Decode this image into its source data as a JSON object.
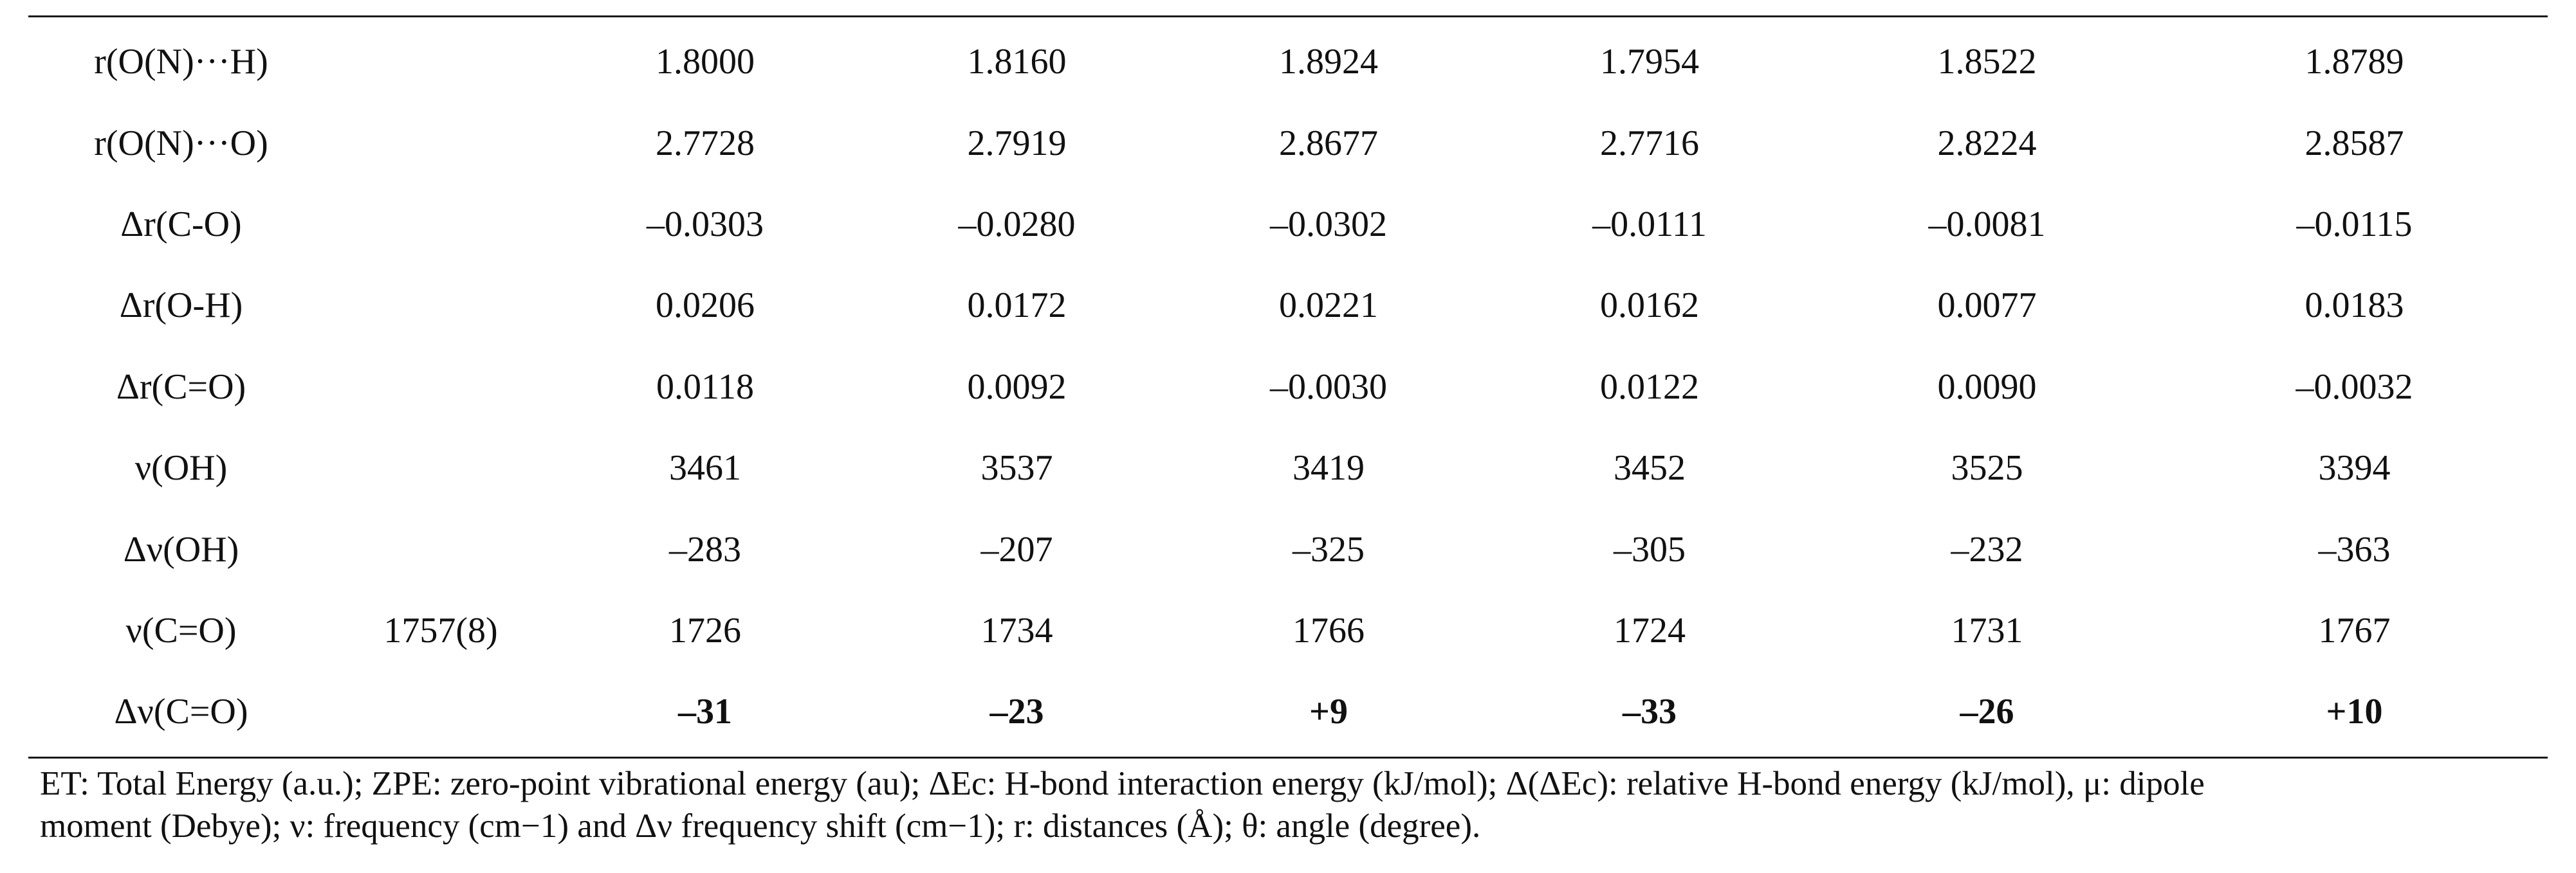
{
  "table": {
    "rows": [
      {
        "label": "r(O(N)···H)",
        "ref": "",
        "values": [
          "1.8000",
          "1.8160",
          "1.8924",
          "1.7954",
          "1.8522",
          "1.8789"
        ],
        "bold": false
      },
      {
        "label": "r(O(N)···O)",
        "ref": "",
        "values": [
          "2.7728",
          "2.7919",
          "2.8677",
          "2.7716",
          "2.8224",
          "2.8587"
        ],
        "bold": false
      },
      {
        "label": "Δr(C-O)",
        "ref": "",
        "values": [
          "–0.0303",
          "–0.0280",
          "–0.0302",
          "–0.0111",
          "–0.0081",
          "–0.0115"
        ],
        "bold": false
      },
      {
        "label": "Δr(O-H)",
        "ref": "",
        "values": [
          "0.0206",
          "0.0172",
          "0.0221",
          "0.0162",
          "0.0077",
          "0.0183"
        ],
        "bold": false
      },
      {
        "label": "Δr(C=O)",
        "ref": "",
        "values": [
          "0.0118",
          "0.0092",
          "–0.0030",
          "0.0122",
          "0.0090",
          "–0.0032"
        ],
        "bold": false
      },
      {
        "label": "ν(OH)",
        "ref": "",
        "values": [
          "3461",
          "3537",
          "3419",
          "3452",
          "3525",
          "3394"
        ],
        "bold": false
      },
      {
        "label": "Δν(OH)",
        "ref": "",
        "values": [
          "–283",
          "–207",
          "–325",
          "–305",
          "–232",
          "–363"
        ],
        "bold": false
      },
      {
        "label": "ν(C=O)",
        "ref": "1757(8)",
        "values": [
          "1726",
          "1734",
          "1766",
          "1724",
          "1731",
          "1767"
        ],
        "bold": false
      },
      {
        "label": "Δν(C=O)",
        "ref": "",
        "values": [
          "–31",
          "–23",
          "+9",
          "–33",
          "–26",
          "+10"
        ],
        "bold": true
      }
    ]
  },
  "footnote": {
    "line1": "ET: Total Energy (a.u.); ZPE: zero-point vibrational energy (au); ΔEc: H-bond interaction energy (kJ/mol); Δ(ΔEc): relative H-bond energy (kJ/mol), μ: dipole",
    "line2": "moment (Debye); ν: frequency (cm−1) and Δν frequency shift (cm−1); r: distances (Å); θ: angle (degree)."
  }
}
